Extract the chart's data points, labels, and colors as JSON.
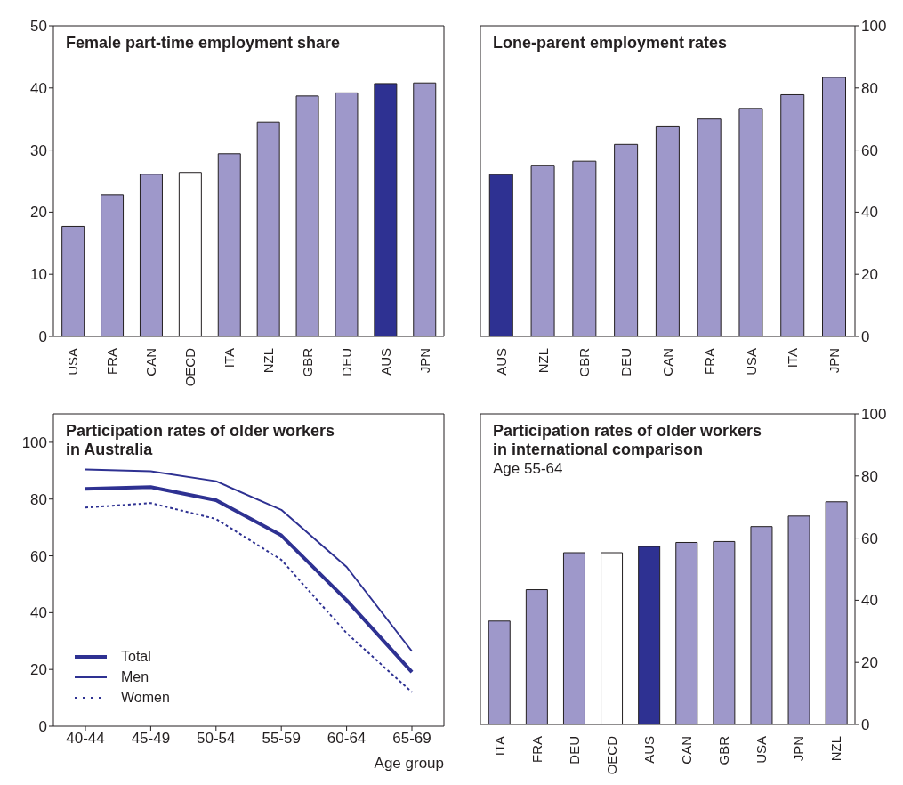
{
  "chart_data": [
    {
      "type": "bar",
      "title": "Female part-time employment share",
      "categories": [
        "USA",
        "FRA",
        "CAN",
        "OECD",
        "ITA",
        "NZL",
        "GBR",
        "DEU",
        "AUS",
        "JPN"
      ],
      "values": [
        17.7,
        22.8,
        26.1,
        26.4,
        29.4,
        34.5,
        38.7,
        39.2,
        40.7,
        40.8
      ],
      "colors": [
        "#9e98ca",
        "#9e98ca",
        "#9e98ca",
        "#ffffff",
        "#9e98ca",
        "#9e98ca",
        "#9e98ca",
        "#9e98ca",
        "#2e3192",
        "#9e98ca"
      ],
      "ylim": [
        0,
        50
      ],
      "yticks": [
        0,
        10,
        20,
        30,
        40,
        50
      ]
    },
    {
      "type": "bar",
      "title": "Lone-parent employment rates",
      "categories": [
        "AUS",
        "NZL",
        "GBR",
        "DEU",
        "CAN",
        "FRA",
        "USA",
        "ITA",
        "JPN"
      ],
      "series": [
        {
          "axis": "y2",
          "values": [
            52.1,
            55.1,
            56.4,
            61.8,
            67.5,
            70.0,
            73.4,
            77.8,
            83.4
          ],
          "colors": [
            "#2e3192",
            "#9e98ca",
            "#9e98ca",
            "#9e98ca",
            "#9e98ca",
            "#9e98ca",
            "#9e98ca",
            "#9e98ca",
            "#9e98ca"
          ]
        }
      ],
      "y2lim": [
        0,
        100
      ],
      "y2ticks": [
        0,
        20,
        40,
        60,
        80,
        100
      ]
    },
    {
      "type": "line",
      "title": "Participation rates of older workers\nin Australia",
      "xlabel": "Age group",
      "categories": [
        "40-44",
        "45-49",
        "50-54",
        "55-59",
        "60-64",
        "65-69"
      ],
      "series": [
        {
          "name": "Total",
          "color": "#2e3192",
          "values": [
            83.6,
            84.2,
            79.6,
            67.2,
            44.4,
            19.1
          ]
        },
        {
          "name": "Men",
          "color": "#2e3192",
          "values": [
            90.4,
            89.8,
            86.3,
            76.2,
            56.1,
            26.4
          ]
        },
        {
          "name": "Women",
          "color": "#2e3192",
          "line_style": "dotted",
          "values": [
            77.0,
            78.6,
            73.0,
            58.6,
            32.8,
            12.0
          ]
        }
      ],
      "ylim": [
        0,
        110
      ],
      "yticks": [
        0,
        20,
        40,
        60,
        80,
        100
      ],
      "legend": "bottom left"
    },
    {
      "type": "bar",
      "title": "Participation rates of older workers\nin international comparison",
      "subtitle": "Age 55-64",
      "categories": [
        "ITA",
        "FRA",
        "DEU",
        "OECD",
        "AUS",
        "CAN",
        "GBR",
        "USA",
        "JPN",
        "NZL"
      ],
      "series": [
        {
          "axis": "y2",
          "values": [
            33.3,
            43.4,
            55.3,
            55.3,
            57.3,
            58.6,
            58.9,
            63.7,
            67.1,
            71.7
          ],
          "colors": [
            "#9e98ca",
            "#9e98ca",
            "#9e98ca",
            "#ffffff",
            "#2e3192",
            "#9e98ca",
            "#9e98ca",
            "#9e98ca",
            "#9e98ca",
            "#9e98ca"
          ]
        }
      ],
      "y2lim": [
        0,
        100
      ],
      "y2ticks": [
        0,
        20,
        40,
        60,
        80,
        100
      ]
    }
  ]
}
